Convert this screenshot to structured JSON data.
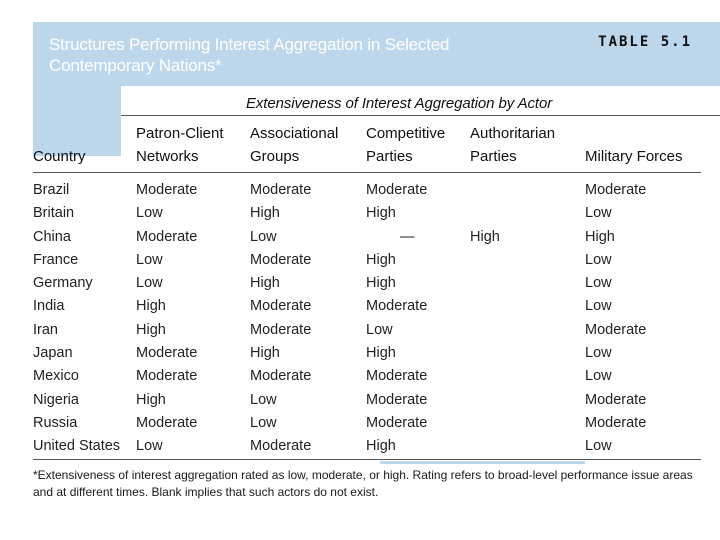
{
  "title": {
    "line1": "Structures Performing Interest Aggregation in Selected",
    "line2": "Contemporary Nations*",
    "table_label": "TABLE 5.1"
  },
  "subheader": "Extensiveness of Interest Aggregation by Actor",
  "columns": [
    {
      "line1": "",
      "line2": "Country"
    },
    {
      "line1": "Patron-Client",
      "line2": "Networks"
    },
    {
      "line1": "Associational",
      "line2": "Groups"
    },
    {
      "line1": "Competitive",
      "line2": "Parties"
    },
    {
      "line1": "Authoritarian",
      "line2": "Parties"
    },
    {
      "line1": "",
      "line2": "Military Forces"
    }
  ],
  "rows": [
    [
      "Brazil",
      "Moderate",
      "Moderate",
      "Moderate",
      "",
      "Moderate"
    ],
    [
      "Britain",
      "Low",
      "High",
      "High",
      "",
      "Low"
    ],
    [
      "China",
      "Moderate",
      "Low",
      "—",
      "High",
      "High"
    ],
    [
      "France",
      "Low",
      "Moderate",
      "High",
      "",
      "Low"
    ],
    [
      "Germany",
      "Low",
      "High",
      "High",
      "",
      "Low"
    ],
    [
      "India",
      "High",
      "Moderate",
      "Moderate",
      "",
      "Low"
    ],
    [
      "Iran",
      "High",
      "Moderate",
      "Low",
      "",
      "Moderate"
    ],
    [
      "Japan",
      "Moderate",
      "High",
      "High",
      "",
      "Low"
    ],
    [
      "Mexico",
      "Moderate",
      "Moderate",
      "Moderate",
      "",
      "Low"
    ],
    [
      "Nigeria",
      "High",
      "Low",
      "Moderate",
      "",
      "Moderate"
    ],
    [
      "Russia",
      "Moderate",
      "Low",
      "Moderate",
      "",
      "Moderate"
    ],
    [
      "United States",
      "Low",
      "Moderate",
      "High",
      "",
      "Low"
    ]
  ],
  "footnote": {
    "line1": "*Extensiveness of interest aggregation rated as low, moderate, or high. Rating refers to broad-level performance issue areas",
    "line2": "and at different times. Blank implies that such actors do not exist."
  },
  "colors": {
    "title_band": "#bcd6ec",
    "title_text": "#ffffff",
    "rules": "#555555"
  }
}
